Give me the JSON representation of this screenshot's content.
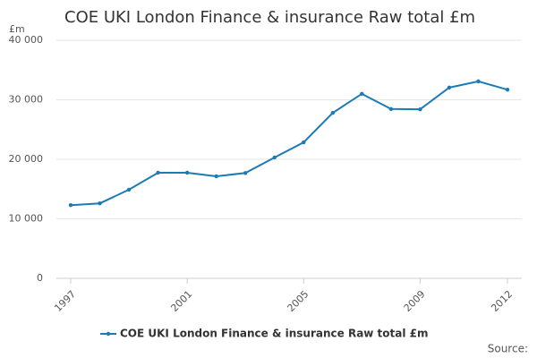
{
  "chart_data": {
    "type": "line",
    "title": "COE UKI London Finance & insurance Raw total £m",
    "y_label": "£m",
    "source": "Source:",
    "x": [
      1997,
      1998,
      1999,
      2000,
      2001,
      2002,
      2003,
      2004,
      2005,
      2006,
      2007,
      2008,
      2009,
      2010,
      2011,
      2012
    ],
    "series": [
      {
        "name": "COE UKI London Finance & insurance Raw total £m",
        "color": "#1a7bb5",
        "values": [
          12300,
          12600,
          14900,
          17750,
          17750,
          17150,
          17700,
          20300,
          22850,
          27800,
          31000,
          28450,
          28400,
          32050,
          33100,
          31700
        ]
      }
    ],
    "xlim": [
      1997,
      2012
    ],
    "xticks": [
      1997,
      2001,
      2005,
      2009,
      2012
    ],
    "ylim": [
      0,
      40000
    ],
    "yticks": [
      0,
      {
        "value": 10000,
        "label": "10 000"
      },
      {
        "value": 20000,
        "label": "20 000"
      },
      {
        "value": 30000,
        "label": "30 000"
      },
      {
        "value": 40000,
        "label": "40 000"
      }
    ],
    "grid": true
  }
}
